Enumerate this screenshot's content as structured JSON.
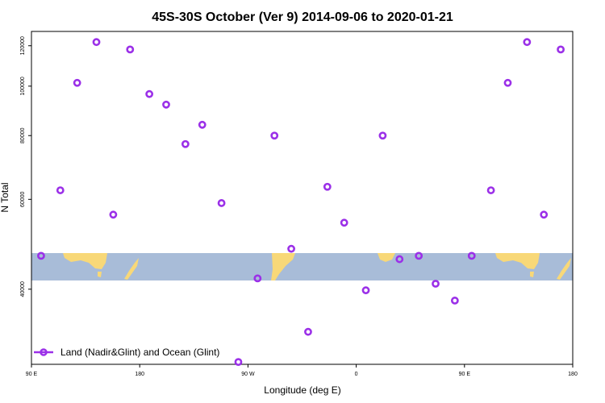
{
  "chart_data": {
    "type": "scatter",
    "title": "45S-30S October (Ver 9)   2014-09-06 to 2020-01-21",
    "xlabel": "Longitude (deg E)",
    "ylabel": "N Total",
    "x_ticks": [
      {
        "label": "90 E",
        "lon": 90
      },
      {
        "label": "180",
        "lon": 180
      },
      {
        "label": "90 W",
        "lon": 270
      },
      {
        "label": "0",
        "lon": 360
      },
      {
        "label": "90 E",
        "lon": 450
      },
      {
        "label": "180",
        "lon": 540
      }
    ],
    "y_ticks": [
      40000,
      60000,
      80000,
      100000,
      120000
    ],
    "y_scale": "log",
    "xlim": [
      90,
      540
    ],
    "ylim": [
      28500,
      128000
    ],
    "legend": {
      "label": "Land (Nadir&Glint) and Ocean (Glint)",
      "position": "bottom-left"
    },
    "series": [
      {
        "name": "Land (Nadir&Glint) and Ocean (Glint)",
        "color": "#9b30e8",
        "marker": "circle-open",
        "points": [
          {
            "x": 98,
            "y": 46500
          },
          {
            "x": 114,
            "y": 62500
          },
          {
            "x": 128,
            "y": 101500
          },
          {
            "x": 144,
            "y": 122000
          },
          {
            "x": 158,
            "y": 56000
          },
          {
            "x": 172,
            "y": 118000
          },
          {
            "x": 188,
            "y": 96500
          },
          {
            "x": 202,
            "y": 92000
          },
          {
            "x": 218,
            "y": 77000
          },
          {
            "x": 232,
            "y": 84000
          },
          {
            "x": 248,
            "y": 59000
          },
          {
            "x": 262,
            "y": 28800
          },
          {
            "x": 278,
            "y": 42000
          },
          {
            "x": 292,
            "y": 80000
          },
          {
            "x": 306,
            "y": 48000
          },
          {
            "x": 320,
            "y": 33000
          },
          {
            "x": 336,
            "y": 63500
          },
          {
            "x": 350,
            "y": 54000
          },
          {
            "x": 368,
            "y": 39800
          },
          {
            "x": 382,
            "y": 80000
          },
          {
            "x": 396,
            "y": 45800
          },
          {
            "x": 412,
            "y": 46500
          },
          {
            "x": 426,
            "y": 41000
          },
          {
            "x": 442,
            "y": 38000
          },
          {
            "x": 456,
            "y": 46500
          },
          {
            "x": 472,
            "y": 62500
          },
          {
            "x": 486,
            "y": 101500
          },
          {
            "x": 502,
            "y": 122000
          },
          {
            "x": 516,
            "y": 56000
          },
          {
            "x": 530,
            "y": 118000
          }
        ]
      }
    ],
    "map_band": {
      "ocean_color": "#a8bcd8",
      "land_color": "#f8d878"
    }
  }
}
